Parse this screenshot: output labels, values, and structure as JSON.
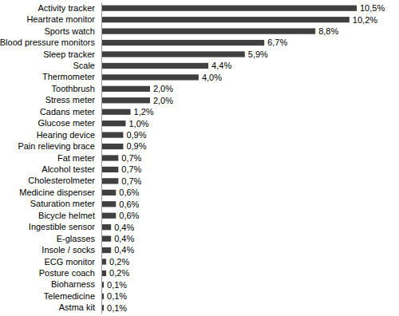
{
  "chart_data": {
    "type": "bar",
    "orientation": "horizontal",
    "categories": [
      "Activity tracker",
      "Heartrate monitor",
      "Sports watch",
      "Blood pressure monitors",
      "Sleep tracker",
      "Scale",
      "Thermometer",
      "Toothbrush",
      "Stress meter",
      "Cadans meter",
      "Glucose meter",
      "Hearing device",
      "Pain relieving brace",
      "Fat meter",
      "Alcohol tester",
      "Cholesterolmeter",
      "Medicine dispenser",
      "Saturation meter",
      "Bicycle helmet",
      "Ingestible sensor",
      "E-glasses",
      "Insole / socks",
      "ECG monitor",
      "Posture coach",
      "Bioharness",
      "Telemedicine",
      "Astma kit"
    ],
    "values": [
      10.5,
      10.2,
      8.8,
      6.7,
      5.9,
      4.4,
      4.0,
      2.0,
      2.0,
      1.2,
      1.0,
      0.9,
      0.9,
      0.7,
      0.7,
      0.7,
      0.6,
      0.6,
      0.6,
      0.4,
      0.4,
      0.4,
      0.2,
      0.2,
      0.1,
      0.1,
      0.1
    ],
    "value_labels": [
      "10,5%",
      "10,2%",
      "8,8%",
      "6,7%",
      "5,9%",
      "4,4%",
      "4,0%",
      "2,0%",
      "2,0%",
      "1,2%",
      "1,0%",
      "0,9%",
      "0,9%",
      "0,7%",
      "0,7%",
      "0,7%",
      "0,6%",
      "0,6%",
      "0,6%",
      "0,4%",
      "0,4%",
      "0,4%",
      "0,2%",
      "0,2%",
      "0,1%",
      "0,1%",
      "0,1%"
    ],
    "color": "#404040",
    "xlim": [
      0,
      10.5
    ],
    "data_labels": true,
    "tick_labels": "y",
    "grid": false
  }
}
